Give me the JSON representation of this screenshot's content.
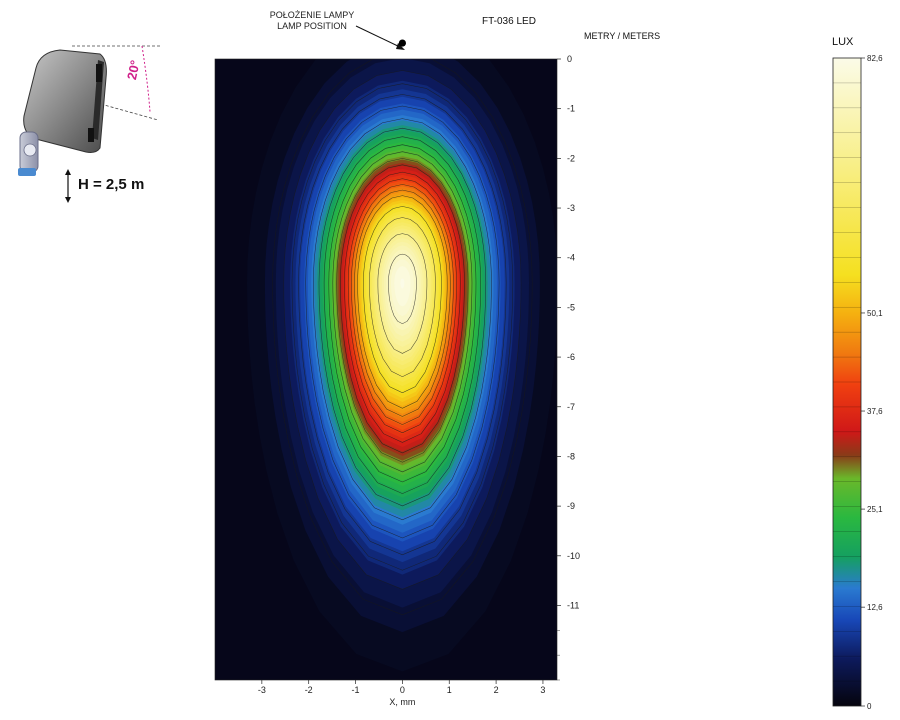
{
  "annotation": {
    "lamp_position_pl": "POŁOŻENIE LAMPY",
    "lamp_position_en": "LAMP POSITION"
  },
  "model": "FT-036 LED",
  "units": "METRY / METERS",
  "mount": {
    "height_label": "H = 2,5 m",
    "tilt_label": "20°"
  },
  "colors": {
    "background": "#ffffff",
    "plot_dark": "#06061a",
    "tilt_magenta": "#d0208a"
  },
  "chart_data": {
    "type": "heatmap",
    "title": "FT-036 LED",
    "xlabel": "X, mm",
    "ylabel": "METRY / METERS",
    "xlim": [
      -4,
      3.3
    ],
    "ylim": [
      -12.5,
      0
    ],
    "x_ticks": [
      -3,
      -2,
      -1,
      0,
      1,
      2,
      3
    ],
    "x_tick_labels": [
      "-3",
      "-2",
      "-1",
      "0",
      "1",
      "2",
      "3"
    ],
    "y_ticks": [
      0,
      -1,
      -2,
      -3,
      -4,
      -5,
      -6,
      -7,
      -8,
      -9,
      -10,
      -11
    ],
    "y_tick_labels": [
      "0",
      "-1",
      "-2",
      "-3",
      "-4",
      "-5",
      "-6",
      "-7",
      "-8",
      "-9",
      "-10",
      "-11"
    ],
    "lamp_position": [
      0,
      0.2
    ],
    "peak_location": [
      0,
      -4.5
    ],
    "peak_value": 82.6,
    "contour_levels": [
      4,
      6,
      8,
      10,
      12.6,
      16,
      19,
      22,
      25.1,
      28,
      31,
      34,
      37.6,
      41,
      44,
      47,
      50.1,
      56,
      62,
      70,
      78
    ],
    "colorbar": {
      "title": "LUX",
      "range": [
        0,
        82.6
      ],
      "ticks": [
        0,
        12.6,
        25.1,
        37.6,
        50.1,
        82.6
      ],
      "tick_labels": [
        "0",
        "12,6",
        "25,1",
        "37,6",
        "50,1",
        "82,6"
      ],
      "colors": [
        "#05040d",
        "#0d1a5c",
        "#1848b8",
        "#2a7ad0",
        "#15a060",
        "#2ab840",
        "#6ab82a",
        "#8a3a18",
        "#d01818",
        "#f04010",
        "#f07a10",
        "#f5b010",
        "#f5e020",
        "#f8ee80",
        "#fbfbe8"
      ],
      "color_stops": [
        0,
        6,
        11,
        15,
        19,
        24,
        29,
        32,
        35,
        41,
        45,
        50,
        55,
        68,
        82.6
      ]
    }
  }
}
